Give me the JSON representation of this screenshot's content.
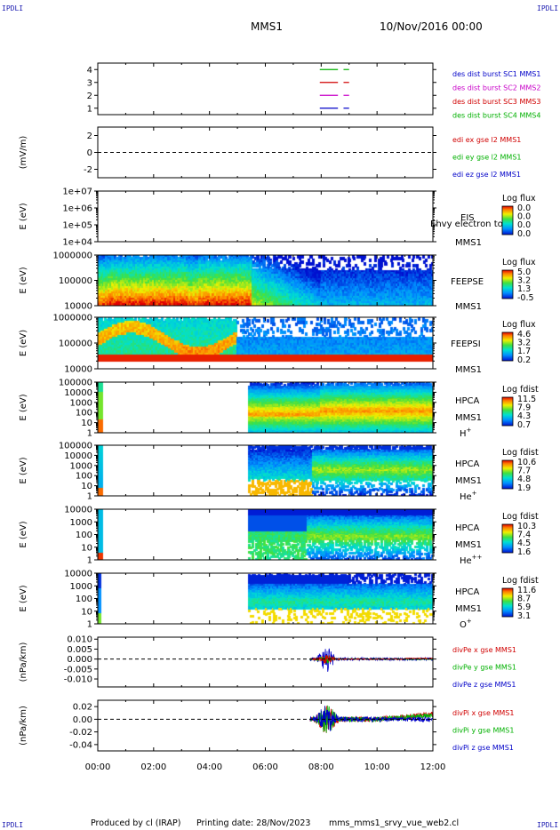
{
  "header": {
    "corner_left": "IPDLI",
    "corner_right": "IPDLI",
    "bottom_left": "IPDLI",
    "bottom_right": "IPDLI",
    "mission": "MMS1",
    "date": "10/Nov/2016 00:00"
  },
  "footer": {
    "produced_by": "Produced by cl (IRAP)",
    "printing_date": "Printing date: 28/Nov/2023",
    "file": "mms_mms1_srvy_vue_web2.cl"
  },
  "chart_data": {
    "type": "stacked time-series / spectrograms",
    "x_axis": {
      "ticks": [
        "00:00",
        "02:00",
        "04:00",
        "06:00",
        "08:00",
        "10:00",
        "12:00"
      ],
      "range_hours": [
        0,
        12
      ]
    },
    "panels": [
      {
        "id": "burst",
        "type": "line",
        "ylim": [
          0.5,
          4.5
        ],
        "yticks": [
          "1",
          "2",
          "3",
          "4"
        ],
        "ytick_values": [
          1,
          2,
          3,
          4
        ],
        "legend": [
          {
            "text": "des dist burst SC1 MMS1",
            "color": "#0000c8"
          },
          {
            "text": "des dist burst SC2 MMS2",
            "color": "#c800c8"
          },
          {
            "text": "des dist burst SC3 MMS3",
            "color": "#d00000"
          },
          {
            "text": "des dist burst SC4 MMS4",
            "color": "#00b000"
          }
        ],
        "segments": [
          {
            "level": 4,
            "color": "#00b000",
            "hours": [
              [
                7.95,
                8.6
              ],
              [
                8.8,
                9.0
              ]
            ]
          },
          {
            "level": 3,
            "color": "#d00000",
            "hours": [
              [
                7.95,
                8.6
              ],
              [
                8.8,
                9.0
              ]
            ]
          },
          {
            "level": 2,
            "color": "#c800c8",
            "hours": [
              [
                7.95,
                8.6
              ],
              [
                8.8,
                9.0
              ]
            ]
          },
          {
            "level": 1,
            "color": "#0000c8",
            "hours": [
              [
                7.95,
                8.6
              ],
              [
                8.8,
                9.0
              ]
            ]
          }
        ]
      },
      {
        "id": "edi",
        "type": "line",
        "ylabel": "(mV/m)",
        "ylim": [
          -3,
          3
        ],
        "yticks": [
          "2",
          "0",
          "-2"
        ],
        "ytick_values": [
          2,
          0,
          -2
        ],
        "zero_line": true,
        "legend": [
          {
            "text": "edi ex gse l2 MMS1",
            "color": "#d00000"
          },
          {
            "text": "edi ey gse l2 MMS1",
            "color": "#00b000"
          },
          {
            "text": "edi ez gse l2 MMS1",
            "color": "#0000c8"
          }
        ]
      },
      {
        "id": "eis",
        "type": "heatmap",
        "ylabel": "E (eV)",
        "log": true,
        "ylim_exp": [
          4,
          7
        ],
        "yticks": [
          "1e+07",
          "1e+06",
          "1e+05",
          "1e+04"
        ],
        "ytick_values": [
          7,
          6,
          5,
          4
        ],
        "instrument": "EIS",
        "instrument_line2": "MMS1",
        "overlay_text": "Ehvy electron to",
        "colorbar_title": "Log flux",
        "colorbar_values": [
          "0.0",
          "0.0",
          "0.0",
          "0.0"
        ]
      },
      {
        "id": "feepse",
        "type": "heatmap",
        "ylabel": "E (eV)",
        "log": true,
        "ylim_exp": [
          4,
          6
        ],
        "yticks": [
          "1000000",
          "100000",
          "10000"
        ],
        "ytick_values": [
          6,
          5,
          4
        ],
        "instrument": "FEEPSE",
        "instrument_line2": "MMS1",
        "colorbar_title": "Log flux",
        "colorbar_values": [
          "5.0",
          "3.2",
          "1.3",
          "-0.5"
        ]
      },
      {
        "id": "feepsi",
        "type": "heatmap",
        "ylabel": "E (eV)",
        "log": true,
        "ylim_exp": [
          4,
          6
        ],
        "yticks": [
          "1000000",
          "100000",
          "10000"
        ],
        "ytick_values": [
          6,
          5,
          4
        ],
        "instrument": "FEEPSI",
        "instrument_line2": "MMS1",
        "colorbar_title": "Log flux",
        "colorbar_values": [
          "4.6",
          "3.2",
          "1.7",
          "0.2"
        ]
      },
      {
        "id": "hpca_h",
        "type": "heatmap",
        "ylabel": "E (eV)",
        "log": true,
        "ylim_exp": [
          0,
          5
        ],
        "yticks": [
          "100000",
          "10000",
          "1000",
          "100",
          "10",
          "1"
        ],
        "ytick_values": [
          5,
          4,
          3,
          2,
          1,
          0
        ],
        "instrument": "HPCA",
        "instrument_line2": "MMS1",
        "species": "H",
        "species_sup": "+",
        "colorbar_title": "Log fdist",
        "colorbar_values": [
          "11.5",
          "7.9",
          "4.3",
          "0.7"
        ]
      },
      {
        "id": "hpca_he",
        "type": "heatmap",
        "ylabel": "E (eV)",
        "log": true,
        "ylim_exp": [
          0,
          5
        ],
        "yticks": [
          "100000",
          "10000",
          "1000",
          "100",
          "10",
          "1"
        ],
        "ytick_values": [
          5,
          4,
          3,
          2,
          1,
          0
        ],
        "instrument": "HPCA",
        "instrument_line2": "MMS1",
        "species": "He",
        "species_sup": "+",
        "colorbar_title": "Log fdist",
        "colorbar_values": [
          "10.6",
          "7.7",
          "4.8",
          "1.9"
        ]
      },
      {
        "id": "hpca_hepp",
        "type": "heatmap",
        "ylabel": "E (eV)",
        "log": true,
        "ylim_exp": [
          0,
          4
        ],
        "yticks": [
          "10000",
          "1000",
          "100",
          "10",
          "1"
        ],
        "ytick_values": [
          4,
          3,
          2,
          1,
          0
        ],
        "instrument": "HPCA",
        "instrument_line2": "MMS1",
        "species": "He",
        "species_sup": "++",
        "colorbar_title": "Log fdist",
        "colorbar_values": [
          "10.3",
          "7.4",
          "4.5",
          "1.6"
        ]
      },
      {
        "id": "hpca_o",
        "type": "heatmap",
        "ylabel": "E (eV)",
        "log": true,
        "ylim_exp": [
          0,
          4
        ],
        "yticks": [
          "10000",
          "1000",
          "100",
          "10",
          "1"
        ],
        "ytick_values": [
          4,
          3,
          2,
          1,
          0
        ],
        "instrument": "HPCA",
        "instrument_line2": "MMS1",
        "species": "O",
        "species_sup": "+",
        "colorbar_title": "Log fdist",
        "colorbar_values": [
          "11.6",
          "8.7",
          "5.9",
          "3.1"
        ]
      },
      {
        "id": "divpe",
        "type": "line",
        "ylabel": "(nPa/km)",
        "ylim": [
          -0.014,
          0.011
        ],
        "yticks": [
          "0.010",
          "0.005",
          "0.000",
          "-0.005",
          "-0.010"
        ],
        "ytick_values": [
          0.01,
          0.005,
          0,
          -0.005,
          -0.01
        ],
        "zero_line": true,
        "legend": [
          {
            "text": "divPe x gse MMS1",
            "color": "#d00000"
          },
          {
            "text": "divPe y gse MMS1",
            "color": "#00b000"
          },
          {
            "text": "divPe z gse MMS1",
            "color": "#0000c8"
          }
        ]
      },
      {
        "id": "divpi",
        "type": "line",
        "ylabel": "(nPa/km)",
        "ylim": [
          -0.05,
          0.03
        ],
        "yticks": [
          "0.02",
          "0.00",
          "-0.02",
          "-0.04"
        ],
        "ytick_values": [
          0.02,
          0,
          -0.02,
          -0.04
        ],
        "zero_line": true,
        "legend": [
          {
            "text": "divPi x gse MMS1",
            "color": "#d00000"
          },
          {
            "text": "divPi y gse MMS1",
            "color": "#00b000"
          },
          {
            "text": "divPi z gse MMS1",
            "color": "#0000c8"
          }
        ]
      }
    ]
  }
}
